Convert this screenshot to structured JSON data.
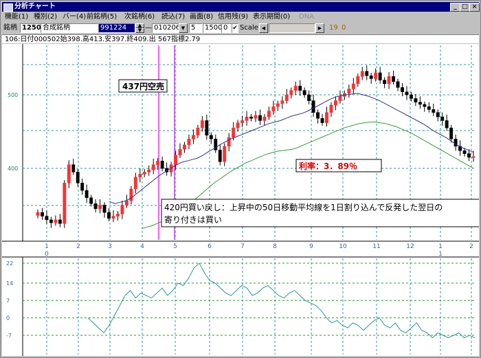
{
  "window": {
    "title": "分析チャート",
    "min_label": "_",
    "max_label": "□",
    "close_label": "×"
  },
  "menu": [
    {
      "label": "機能(1)",
      "enabled": true
    },
    {
      "label": "種別(2)",
      "enabled": true
    },
    {
      "label": "バー(4)",
      "enabled": true
    },
    {
      "label": "前銘柄(5)",
      "enabled": true
    },
    {
      "label": "次銘柄(6)",
      "enabled": true
    },
    {
      "label": "読込(7)",
      "enabled": true
    },
    {
      "label": "画面(8)",
      "enabled": true
    },
    {
      "label": "信用残(9)",
      "enabled": true
    },
    {
      "label": "表示期間(0)",
      "enabled": true
    },
    {
      "label": "DNA",
      "enabled": false
    }
  ],
  "toolbar": {
    "code_label": "銘柄",
    "code_value": "1250",
    "name_value": "合成銘柄",
    "start_date": "991224",
    "date_sep": "—",
    "end_date": "010206",
    "param1": "5",
    "param2": "1500",
    "param3": "0",
    "scale_label": "Scale",
    "scale_checked": true,
    "num1": "19",
    "num2": "0"
  },
  "info_line": "106:日付000502始398.高413.安397.終409.出 567指標2.79",
  "chart_data": [
    {
      "type": "candlestick",
      "title": "",
      "ylabel": "",
      "y_ticks": [
        "500",
        "400"
      ],
      "x_month_labels": [
        "1",
        "2",
        "3",
        "4",
        "5",
        "6",
        "7",
        "8",
        "9",
        "10",
        "11",
        "12",
        "1",
        "2"
      ],
      "x_year_labels": [
        "0",
        "1"
      ],
      "close": [
        340,
        335,
        330,
        326,
        330,
        325,
        380,
        405,
        395,
        380,
        370,
        360,
        352,
        345,
        350,
        340,
        332,
        335,
        338,
        350,
        356,
        372,
        388,
        392,
        395,
        398,
        405,
        410,
        400,
        395,
        405,
        418,
        426,
        432,
        440,
        445,
        455,
        465,
        445,
        440,
        425,
        409,
        430,
        442,
        455,
        462,
        465,
        470,
        468,
        472,
        465,
        470,
        478,
        484,
        488,
        492,
        500,
        506,
        512,
        506,
        500,
        492,
        476,
        468,
        462,
        476,
        486,
        492,
        498,
        502,
        508,
        515,
        525,
        532,
        526,
        522,
        530,
        520,
        515,
        525,
        518,
        510,
        504,
        500,
        495,
        490,
        487,
        484,
        480,
        476,
        470,
        465,
        455,
        440,
        430,
        424,
        420,
        415,
        416
      ],
      "ma_short": [
        null,
        null,
        null,
        null,
        null,
        null,
        null,
        null,
        null,
        null,
        null,
        null,
        null,
        355,
        352,
        354,
        356,
        360,
        366,
        372,
        378,
        384,
        390,
        395,
        400,
        404,
        408,
        410,
        412,
        414,
        418,
        423,
        427,
        432,
        436,
        440,
        443,
        446,
        449,
        452,
        455,
        458,
        461,
        463,
        465,
        468,
        471,
        473,
        475,
        478,
        482,
        486,
        490,
        494,
        497,
        499,
        500,
        501,
        502,
        500,
        498,
        495,
        492,
        488,
        484,
        480,
        476,
        472,
        468,
        464,
        460,
        455,
        450,
        446,
        442,
        437,
        432,
        428,
        425,
        422
      ],
      "ma_long": [
        null,
        null,
        null,
        null,
        null,
        null,
        null,
        null,
        null,
        null,
        null,
        null,
        null,
        null,
        null,
        null,
        null,
        null,
        null,
        null,
        318,
        320,
        322,
        325,
        328,
        332,
        336,
        340,
        345,
        350,
        356,
        362,
        368,
        374,
        380,
        385,
        390,
        395,
        399,
        403,
        407,
        410,
        413,
        416,
        419,
        421,
        423,
        424,
        425,
        426,
        428,
        431,
        434,
        437,
        440,
        443,
        446,
        449,
        452,
        455,
        457,
        459,
        461,
        462,
        463,
        463,
        462,
        461,
        459,
        457,
        454,
        451,
        448,
        444,
        440,
        436,
        432,
        428,
        424,
        420,
        416,
        412,
        408,
        404,
        400
      ],
      "annotations": [
        "437円空売",
        "利率：3．89％",
        "420円買い戻し：上昇中の50日移動平均線を1日割り込んで反発した翌日の寄り付きは買い"
      ]
    },
    {
      "type": "line",
      "title": "",
      "y_ticks": [
        "22",
        "14",
        "7",
        "0",
        "-7"
      ],
      "ylim": [
        -8,
        22
      ],
      "values": [
        0,
        -2,
        -4,
        -6,
        -3,
        1,
        5,
        9,
        11,
        8,
        10,
        9,
        8,
        10,
        12,
        9,
        11,
        14,
        13,
        16,
        20,
        22,
        18,
        15,
        14,
        12,
        10,
        9,
        11,
        13,
        12,
        9,
        10,
        12,
        13,
        11,
        9,
        8,
        10,
        11,
        9,
        7,
        6,
        5,
        3,
        0,
        -2,
        -1,
        -3,
        -4,
        -2,
        -3,
        -5,
        -3,
        -1,
        0,
        -3,
        -4,
        -2,
        -5,
        -6,
        -4,
        -2,
        -5,
        -6,
        -8,
        -6,
        -7,
        -8,
        -7,
        -6,
        -8,
        -7,
        -8
      ]
    }
  ]
}
